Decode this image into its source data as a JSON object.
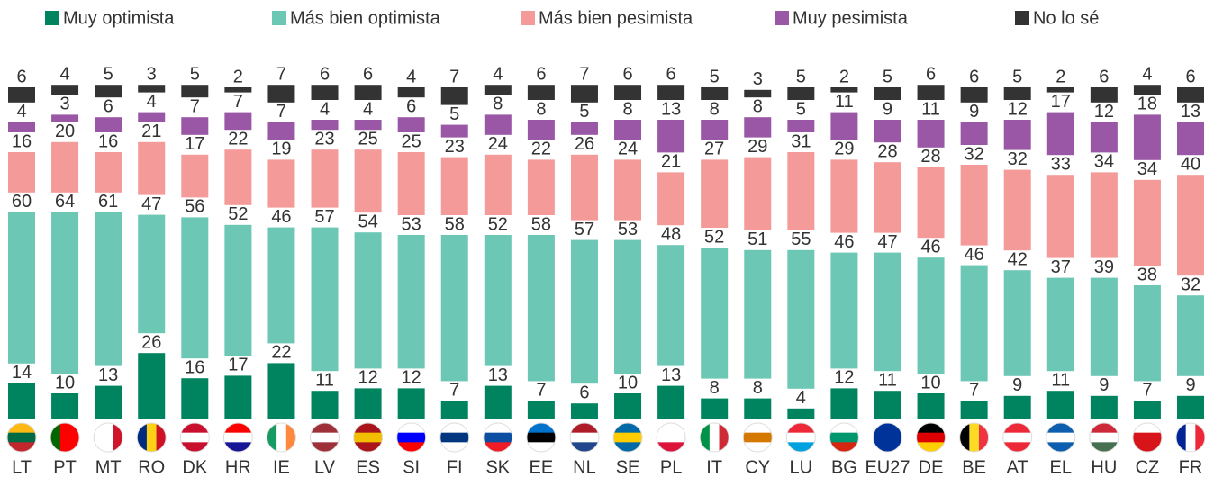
{
  "chart_data": {
    "type": "bar",
    "stacked": true,
    "categories": [
      "LT",
      "PT",
      "MT",
      "RO",
      "DK",
      "HR",
      "IE",
      "LV",
      "ES",
      "SI",
      "FI",
      "SK",
      "EE",
      "NL",
      "SE",
      "PL",
      "IT",
      "CY",
      "LU",
      "BG",
      "EU27",
      "DE",
      "BE",
      "AT",
      "EL",
      "HU",
      "CZ",
      "FR"
    ],
    "series": [
      {
        "name": "Muy optimista",
        "color": "#00845f",
        "values": [
          14,
          10,
          13,
          26,
          16,
          17,
          22,
          11,
          12,
          12,
          7,
          13,
          7,
          6,
          10,
          13,
          8,
          8,
          4,
          12,
          11,
          10,
          7,
          9,
          11,
          9,
          7,
          9
        ]
      },
      {
        "name": "Más bien optimista",
        "color": "#6cc7b5",
        "values": [
          60,
          64,
          61,
          47,
          56,
          52,
          46,
          57,
          54,
          53,
          58,
          52,
          58,
          57,
          53,
          48,
          52,
          51,
          55,
          46,
          47,
          46,
          46,
          42,
          37,
          39,
          38,
          32
        ]
      },
      {
        "name": "Más bien pesimista",
        "color": "#f49a98",
        "values": [
          16,
          20,
          16,
          21,
          17,
          22,
          19,
          23,
          25,
          25,
          23,
          24,
          22,
          26,
          24,
          21,
          27,
          29,
          31,
          29,
          28,
          28,
          32,
          32,
          33,
          34,
          34,
          40
        ]
      },
      {
        "name": "Muy pesimista",
        "color": "#9a57a6",
        "values": [
          4,
          3,
          6,
          4,
          7,
          7,
          7,
          4,
          4,
          6,
          5,
          8,
          8,
          5,
          8,
          13,
          8,
          8,
          5,
          11,
          9,
          11,
          9,
          12,
          17,
          12,
          18,
          13
        ]
      },
      {
        "name": "No lo sé",
        "color": "#333333",
        "values": [
          6,
          4,
          5,
          3,
          5,
          2,
          7,
          6,
          6,
          4,
          7,
          4,
          6,
          7,
          6,
          6,
          5,
          3,
          5,
          2,
          5,
          6,
          6,
          5,
          2,
          6,
          4,
          6
        ]
      }
    ]
  }
}
